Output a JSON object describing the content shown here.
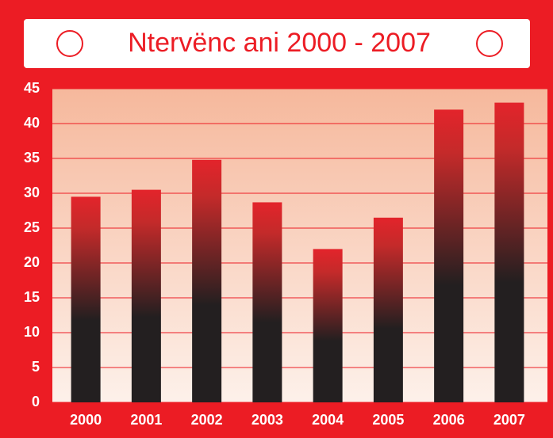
{
  "chart_data": {
    "type": "bar",
    "title": "Ntervënc ani 2000 - 2007",
    "categories": [
      "2000",
      "2001",
      "2002",
      "2003",
      "2004",
      "2005",
      "2006",
      "2007"
    ],
    "values": [
      29.5,
      30.5,
      34.8,
      28.7,
      22,
      26.5,
      42,
      43
    ],
    "color": "#e3242b",
    "ylim": [
      0,
      45
    ],
    "yticks": [
      0,
      5,
      10,
      15,
      20,
      25,
      30,
      35,
      40,
      45
    ],
    "grid": true
  }
}
